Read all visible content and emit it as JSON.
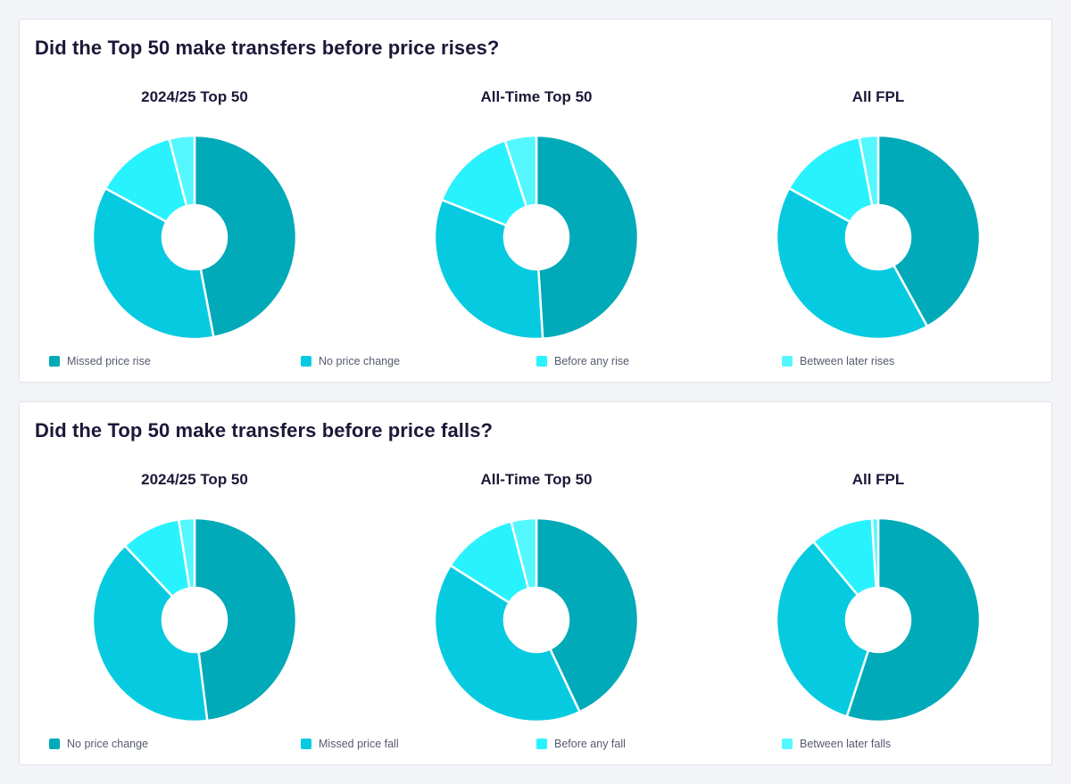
{
  "colors": {
    "series": [
      "#00aab8",
      "#06cbe0",
      "#29f2ff",
      "#55f7ff"
    ],
    "slice_border": "#ffffff"
  },
  "sections": [
    {
      "title": "Did the Top 50 make transfers before price rises?",
      "legend": [
        "Missed price rise",
        "No price change",
        "Before any rise",
        "Between later rises"
      ],
      "chart_data": [
        {
          "type": "pie",
          "title": "2024/25 Top 50",
          "categories": [
            "Missed price rise",
            "No price change",
            "Before any rise",
            "Between later rises"
          ],
          "values": [
            47,
            36,
            13,
            4
          ]
        },
        {
          "type": "pie",
          "title": "All-Time Top 50",
          "categories": [
            "Missed price rise",
            "No price change",
            "Before any rise",
            "Between later rises"
          ],
          "values": [
            49,
            32,
            14,
            5
          ]
        },
        {
          "type": "pie",
          "title": "All FPL",
          "categories": [
            "Missed price rise",
            "No price change",
            "Before any rise",
            "Between later rises"
          ],
          "values": [
            42,
            41,
            14,
            3
          ]
        }
      ]
    },
    {
      "title": "Did the Top 50 make transfers before price falls?",
      "legend": [
        "No price change",
        "Missed price fall",
        "Before any fall",
        "Between later falls"
      ],
      "chart_data": [
        {
          "type": "pie",
          "title": "2024/25 Top 50",
          "categories": [
            "No price change",
            "Missed price fall",
            "Before any fall",
            "Between later falls"
          ],
          "values": [
            48,
            40,
            9.5,
            2.5
          ]
        },
        {
          "type": "pie",
          "title": "All-Time Top 50",
          "categories": [
            "No price change",
            "Missed price fall",
            "Before any fall",
            "Between later falls"
          ],
          "values": [
            43,
            41,
            12,
            4
          ]
        },
        {
          "type": "pie",
          "title": "All FPL",
          "categories": [
            "No price change",
            "Missed price fall",
            "Before any fall",
            "Between later falls"
          ],
          "values": [
            55,
            34,
            10,
            1
          ]
        }
      ]
    }
  ]
}
